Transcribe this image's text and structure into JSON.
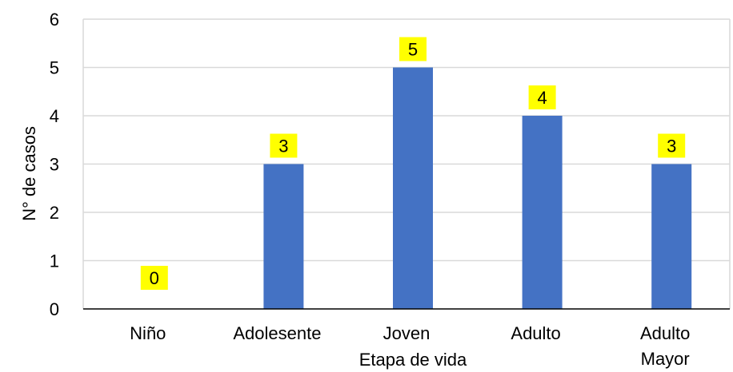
{
  "chart_data": {
    "type": "bar",
    "categories": [
      "Niño",
      "Adolesente",
      "Joven",
      "Adulto",
      "Adulto Mayor"
    ],
    "category_lines": [
      [
        "Niño"
      ],
      [
        "Adolesente"
      ],
      [
        "Joven"
      ],
      [
        "Adulto"
      ],
      [
        "Adulto",
        "Mayor"
      ]
    ],
    "values": [
      0,
      3,
      5,
      4,
      3
    ],
    "title": "",
    "xlabel": "Etapa de vida",
    "ylabel": "N° de casos",
    "ylim": [
      0,
      6
    ],
    "yticks": [
      0,
      1,
      2,
      3,
      4,
      5,
      6
    ],
    "grid": true,
    "legend": "none",
    "data_labels": true,
    "colors": {
      "bar": "#4472C4",
      "label_background": "#FFFF00",
      "grid": "#D9D9D9",
      "axis": "#000000"
    }
  }
}
